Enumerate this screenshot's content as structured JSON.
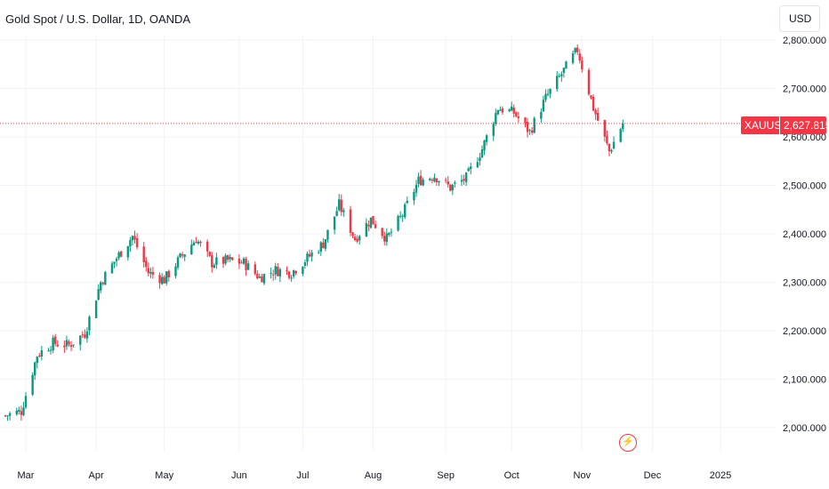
{
  "header": {
    "title": "Gold Spot / U.S. Dollar, 1D, OANDA",
    "currency_label": "USD"
  },
  "last_price_tag": {
    "symbol": "XAUUSD",
    "price": "2,627.815"
  },
  "event_icon": "lightning-bolt-icon",
  "colors": {
    "up": "#089981",
    "down": "#f23645",
    "grid": "#f0f3fa",
    "text": "#131722"
  },
  "chart_data": {
    "type": "candlestick",
    "title": "Gold Spot / U.S. Dollar, 1D, OANDA",
    "currency": "USD",
    "last_price": 2627.815,
    "ylim": [
      1960,
      2830
    ],
    "y_ticks": [
      2000,
      2100,
      2200,
      2300,
      2400,
      2500,
      2600,
      2700,
      2800
    ],
    "y_tick_labels": [
      "2,000.000",
      "2,100.000",
      "2,200.000",
      "2,300.000",
      "2,400.000",
      "2,500.000",
      "2,600.000",
      "2,700.000",
      "2,800.000"
    ],
    "x_range": [
      "2024-02-21",
      "2024-12-31"
    ],
    "x_ticks": [
      {
        "label": "Mar",
        "date": "2024-03-01"
      },
      {
        "label": "Apr",
        "date": "2024-04-01"
      },
      {
        "label": "May",
        "date": "2024-05-01"
      },
      {
        "label": "Jun",
        "date": "2024-06-03"
      },
      {
        "label": "Jul",
        "date": "2024-07-01"
      },
      {
        "label": "Aug",
        "date": "2024-08-01"
      },
      {
        "label": "Sep",
        "date": "2024-09-02"
      },
      {
        "label": "Oct",
        "date": "2024-10-01"
      },
      {
        "label": "Nov",
        "date": "2024-11-01"
      },
      {
        "label": "Dec",
        "date": "2024-12-02"
      },
      {
        "label": "2025",
        "date": "2025-01-01"
      }
    ],
    "closes": [
      {
        "date": "2024-02-21",
        "close": 2025
      },
      {
        "date": "2024-02-28",
        "close": 2034
      },
      {
        "date": "2024-03-06",
        "close": 2150
      },
      {
        "date": "2024-03-13",
        "close": 2175
      },
      {
        "date": "2024-03-20",
        "close": 2170
      },
      {
        "date": "2024-03-27",
        "close": 2195
      },
      {
        "date": "2024-04-03",
        "close": 2300
      },
      {
        "date": "2024-04-10",
        "close": 2350
      },
      {
        "date": "2024-04-17",
        "close": 2395
      },
      {
        "date": "2024-04-24",
        "close": 2320
      },
      {
        "date": "2024-05-01",
        "close": 2305
      },
      {
        "date": "2024-05-08",
        "close": 2350
      },
      {
        "date": "2024-05-15",
        "close": 2390
      },
      {
        "date": "2024-05-22",
        "close": 2340
      },
      {
        "date": "2024-05-29",
        "close": 2345
      },
      {
        "date": "2024-06-05",
        "close": 2340
      },
      {
        "date": "2024-06-12",
        "close": 2310
      },
      {
        "date": "2024-06-19",
        "close": 2325
      },
      {
        "date": "2024-06-26",
        "close": 2320
      },
      {
        "date": "2024-07-03",
        "close": 2350
      },
      {
        "date": "2024-07-10",
        "close": 2380
      },
      {
        "date": "2024-07-17",
        "close": 2460
      },
      {
        "date": "2024-07-24",
        "close": 2390
      },
      {
        "date": "2024-07-31",
        "close": 2430
      },
      {
        "date": "2024-08-07",
        "close": 2390
      },
      {
        "date": "2024-08-14",
        "close": 2440
      },
      {
        "date": "2024-08-21",
        "close": 2510
      },
      {
        "date": "2024-08-28",
        "close": 2520
      },
      {
        "date": "2024-09-04",
        "close": 2495
      },
      {
        "date": "2024-09-11",
        "close": 2515
      },
      {
        "date": "2024-09-18",
        "close": 2575
      },
      {
        "date": "2024-09-25",
        "close": 2660
      },
      {
        "date": "2024-10-02",
        "close": 2650
      },
      {
        "date": "2024-10-09",
        "close": 2610
      },
      {
        "date": "2024-10-16",
        "close": 2680
      },
      {
        "date": "2024-10-23",
        "close": 2730
      },
      {
        "date": "2024-10-30",
        "close": 2780
      },
      {
        "date": "2024-11-06",
        "close": 2660
      },
      {
        "date": "2024-11-13",
        "close": 2570
      },
      {
        "date": "2024-11-19",
        "close": 2627.815
      }
    ]
  }
}
